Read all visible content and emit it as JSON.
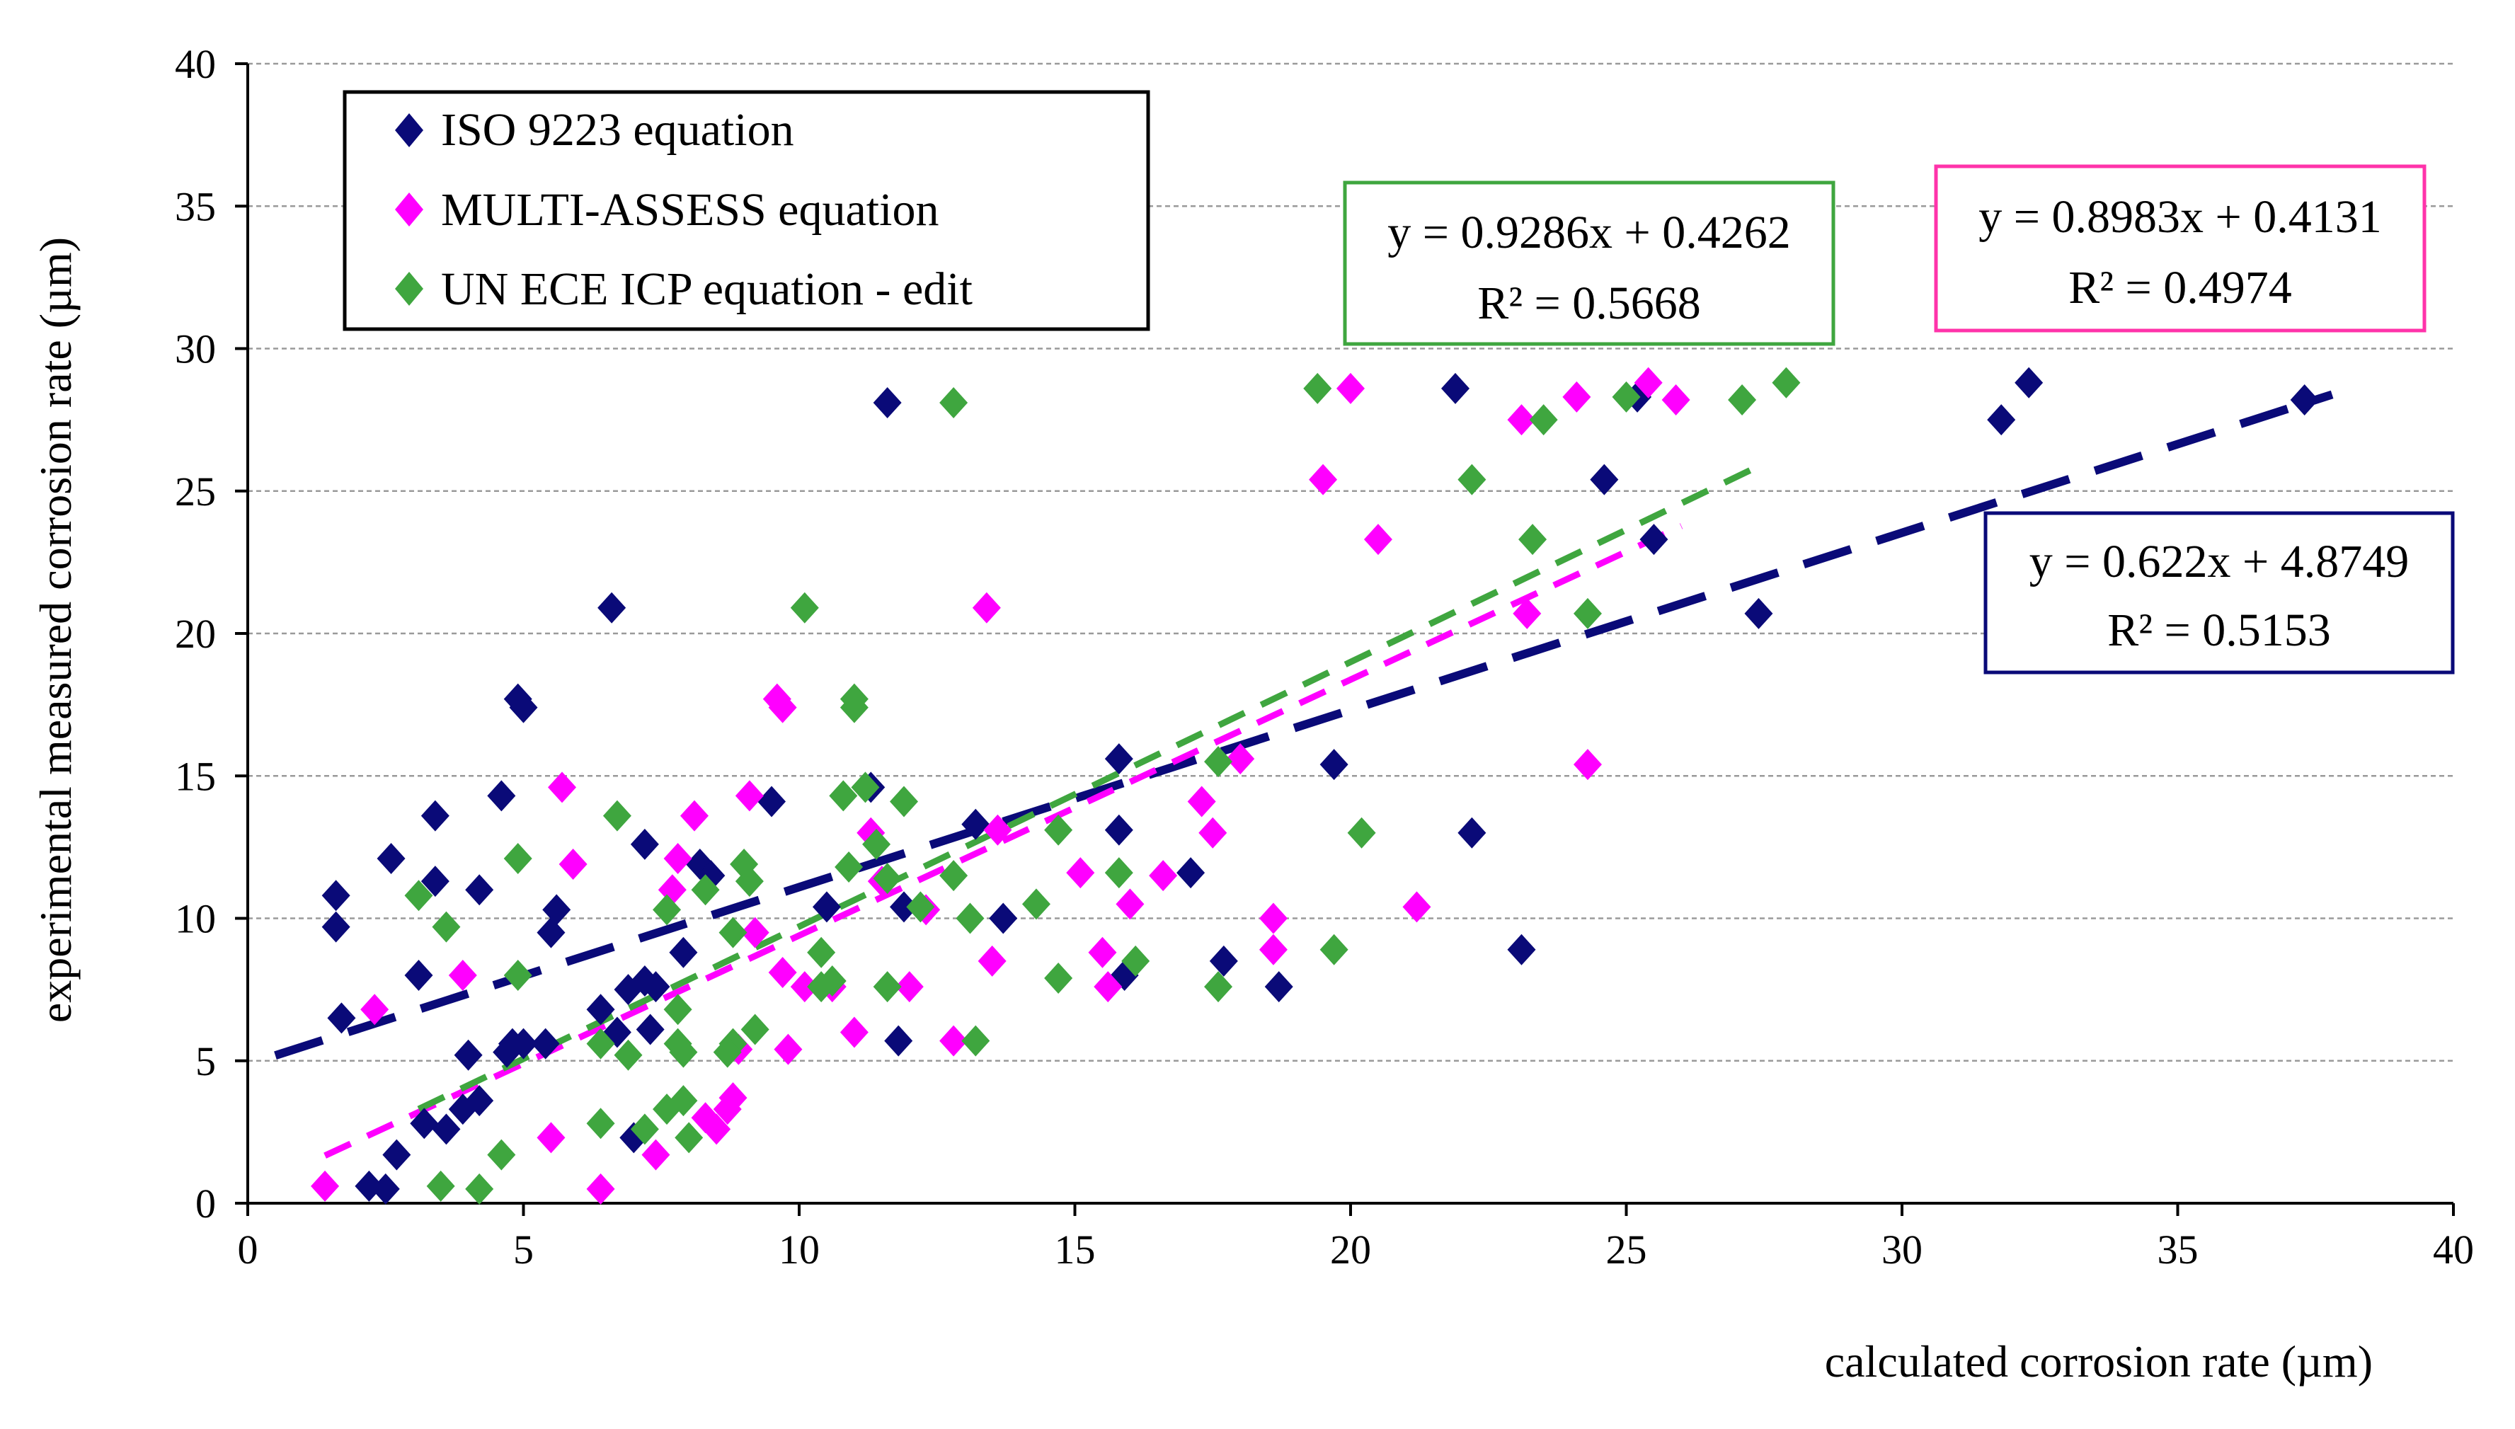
{
  "chart_data": {
    "type": "scatter",
    "xlabel": "calculated corrosion rate (µm)",
    "ylabel": "experimental measured corrosion rate (µm)",
    "xlim": [
      0,
      40
    ],
    "ylim": [
      0,
      40
    ],
    "xticks": [
      "0",
      "5",
      "10",
      "15",
      "20",
      "25",
      "30",
      "35",
      "40"
    ],
    "yticks": [
      "0",
      "5",
      "10",
      "15",
      "20",
      "25",
      "30",
      "35",
      "40"
    ],
    "grid": "horizontal dashed",
    "legend_position": "top-left",
    "series": [
      {
        "name": "ISO 9223 equation",
        "color": "#0a0a78",
        "marker": "diamond",
        "points": [
          [
            1.6,
            10.8
          ],
          [
            1.6,
            9.7
          ],
          [
            1.7,
            6.5
          ],
          [
            2.2,
            0.6
          ],
          [
            2.5,
            0.5
          ],
          [
            2.6,
            12.1
          ],
          [
            2.7,
            1.7
          ],
          [
            3.1,
            8.0
          ],
          [
            3.2,
            2.8
          ],
          [
            3.4,
            11.3
          ],
          [
            3.4,
            13.6
          ],
          [
            3.6,
            2.6
          ],
          [
            3.9,
            3.3
          ],
          [
            4.0,
            5.2
          ],
          [
            4.2,
            3.6
          ],
          [
            4.2,
            11.0
          ],
          [
            4.6,
            14.3
          ],
          [
            4.7,
            5.3
          ],
          [
            4.8,
            5.6
          ],
          [
            4.9,
            17.7
          ],
          [
            5.0,
            17.4
          ],
          [
            5.0,
            5.6
          ],
          [
            5.4,
            5.6
          ],
          [
            5.5,
            9.5
          ],
          [
            5.6,
            10.3
          ],
          [
            6.4,
            6.8
          ],
          [
            6.6,
            20.9
          ],
          [
            6.7,
            6.0
          ],
          [
            6.9,
            7.5
          ],
          [
            7.0,
            2.3
          ],
          [
            7.2,
            7.8
          ],
          [
            7.2,
            12.6
          ],
          [
            7.3,
            6.1
          ],
          [
            7.4,
            7.6
          ],
          [
            7.9,
            8.8
          ],
          [
            8.2,
            11.9
          ],
          [
            8.4,
            11.5
          ],
          [
            9.5,
            14.1
          ],
          [
            10.5,
            10.4
          ],
          [
            11.3,
            14.6
          ],
          [
            11.6,
            28.1
          ],
          [
            11.8,
            5.7
          ],
          [
            11.9,
            10.4
          ],
          [
            13.2,
            13.3
          ],
          [
            13.7,
            10.0
          ],
          [
            15.8,
            15.6
          ],
          [
            15.8,
            13.1
          ],
          [
            15.9,
            8.0
          ],
          [
            17.1,
            11.6
          ],
          [
            17.7,
            8.5
          ],
          [
            18.7,
            7.6
          ],
          [
            19.7,
            15.4
          ],
          [
            21.9,
            28.6
          ],
          [
            22.2,
            13.0
          ],
          [
            23.1,
            8.9
          ],
          [
            24.6,
            25.4
          ],
          [
            25.2,
            28.3
          ],
          [
            25.5,
            23.3
          ],
          [
            27.4,
            20.7
          ],
          [
            31.8,
            27.5
          ],
          [
            32.3,
            28.8
          ],
          [
            37.3,
            28.2
          ]
        ],
        "trendline": {
          "equation": "y = 0.622x + 4.8749",
          "r2": "R² = 0.5153",
          "slope": 0.622,
          "intercept": 4.8749,
          "x_range": [
            0.5,
            37.8
          ]
        }
      },
      {
        "name": "MULTI-ASSESS equation",
        "color": "#ff00ff",
        "marker": "diamond",
        "points": [
          [
            1.4,
            0.6
          ],
          [
            2.3,
            6.8
          ],
          [
            3.9,
            8.0
          ],
          [
            5.5,
            2.3
          ],
          [
            5.7,
            14.6
          ],
          [
            5.9,
            11.9
          ],
          [
            6.4,
            0.5
          ],
          [
            7.4,
            1.7
          ],
          [
            7.7,
            11.0
          ],
          [
            7.8,
            12.1
          ],
          [
            8.1,
            13.6
          ],
          [
            8.3,
            3.0
          ],
          [
            8.5,
            2.6
          ],
          [
            8.7,
            3.3
          ],
          [
            8.8,
            3.7
          ],
          [
            8.9,
            5.4
          ],
          [
            9.2,
            9.5
          ],
          [
            9.1,
            14.3
          ],
          [
            9.6,
            17.7
          ],
          [
            9.7,
            17.4
          ],
          [
            9.7,
            8.1
          ],
          [
            9.8,
            5.4
          ],
          [
            10.1,
            7.6
          ],
          [
            10.6,
            7.6
          ],
          [
            11.0,
            6.0
          ],
          [
            11.3,
            13.0
          ],
          [
            11.5,
            11.3
          ],
          [
            12.0,
            7.6
          ],
          [
            12.3,
            10.3
          ],
          [
            12.8,
            5.7
          ],
          [
            13.4,
            20.9
          ],
          [
            13.5,
            8.5
          ],
          [
            13.6,
            13.1
          ],
          [
            15.1,
            11.6
          ],
          [
            15.5,
            8.8
          ],
          [
            15.6,
            7.6
          ],
          [
            16.0,
            10.5
          ],
          [
            16.6,
            11.5
          ],
          [
            17.3,
            14.1
          ],
          [
            17.5,
            13.0
          ],
          [
            18.0,
            15.6
          ],
          [
            18.6,
            10.0
          ],
          [
            18.6,
            8.9
          ],
          [
            19.5,
            25.4
          ],
          [
            20.0,
            28.6
          ],
          [
            20.5,
            23.3
          ],
          [
            21.2,
            10.4
          ],
          [
            23.1,
            27.5
          ],
          [
            23.2,
            20.7
          ],
          [
            24.1,
            28.3
          ],
          [
            24.3,
            15.4
          ],
          [
            25.4,
            28.8
          ],
          [
            25.9,
            28.2
          ]
        ],
        "trendline": {
          "equation": "y = 0.8983x + 0.4131",
          "r2": "R² = 0.4974",
          "slope": 0.8983,
          "intercept": 0.4131,
          "x_range": [
            1.4,
            26.0
          ]
        }
      },
      {
        "name": "UN ECE ICP equation - edit",
        "color": "#3fa63f",
        "marker": "diamond",
        "points": [
          [
            3.1,
            10.8
          ],
          [
            3.5,
            0.6
          ],
          [
            3.6,
            9.7
          ],
          [
            4.2,
            0.5
          ],
          [
            4.6,
            1.7
          ],
          [
            4.9,
            12.1
          ],
          [
            4.9,
            8.0
          ],
          [
            6.4,
            5.6
          ],
          [
            6.4,
            2.8
          ],
          [
            6.7,
            13.6
          ],
          [
            6.9,
            5.2
          ],
          [
            7.2,
            2.6
          ],
          [
            7.6,
            3.3
          ],
          [
            7.6,
            10.3
          ],
          [
            7.8,
            5.6
          ],
          [
            7.8,
            6.8
          ],
          [
            7.9,
            3.6
          ],
          [
            7.9,
            5.3
          ],
          [
            8.0,
            2.3
          ],
          [
            8.3,
            11.0
          ],
          [
            8.8,
            5.6
          ],
          [
            8.7,
            5.3
          ],
          [
            8.8,
            9.5
          ],
          [
            9.0,
            11.9
          ],
          [
            9.1,
            11.3
          ],
          [
            9.2,
            6.1
          ],
          [
            10.1,
            20.9
          ],
          [
            10.4,
            8.8
          ],
          [
            10.4,
            7.6
          ],
          [
            10.6,
            7.8
          ],
          [
            10.8,
            14.3
          ],
          [
            10.9,
            11.8
          ],
          [
            11.0,
            17.7
          ],
          [
            11.0,
            17.4
          ],
          [
            11.2,
            14.6
          ],
          [
            11.4,
            12.6
          ],
          [
            11.6,
            11.4
          ],
          [
            11.6,
            7.6
          ],
          [
            11.9,
            14.1
          ],
          [
            12.2,
            10.4
          ],
          [
            12.8,
            28.1
          ],
          [
            12.8,
            11.5
          ],
          [
            13.1,
            10.0
          ],
          [
            13.2,
            5.7
          ],
          [
            14.3,
            10.5
          ],
          [
            14.7,
            13.1
          ],
          [
            14.7,
            7.9
          ],
          [
            15.8,
            11.6
          ],
          [
            16.1,
            8.5
          ],
          [
            17.6,
            15.5
          ],
          [
            17.6,
            7.6
          ],
          [
            19.4,
            28.6
          ],
          [
            19.7,
            8.9
          ],
          [
            20.2,
            13.0
          ],
          [
            22.2,
            25.4
          ],
          [
            23.3,
            23.3
          ],
          [
            23.5,
            27.5
          ],
          [
            24.3,
            20.7
          ],
          [
            25.0,
            28.3
          ],
          [
            27.1,
            28.2
          ],
          [
            27.9,
            28.8
          ]
        ],
        "trendline": {
          "equation": "y = 0.9286x + 0.4262",
          "r2": "R² = 0.5668",
          "slope": 0.9286,
          "intercept": 0.4262,
          "x_range": [
            3.1,
            27.3
          ]
        }
      }
    ]
  },
  "legend": {
    "items": [
      "ISO 9223 equation",
      "MULTI-ASSESS equation",
      "UN ECE ICP equation - edit"
    ]
  },
  "equation_boxes": {
    "green": {
      "line1": "y = 0.9286x + 0.4262",
      "line2": "R² = 0.5668",
      "color": "#3fa63f"
    },
    "magenta": {
      "line1": "y = 0.8983x + 0.4131",
      "line2": "R² = 0.4974",
      "color": "#ff33aa"
    },
    "navy": {
      "line1": "y = 0.622x + 4.8749",
      "line2": "R² = 0.5153",
      "color": "#0a0a78"
    }
  }
}
